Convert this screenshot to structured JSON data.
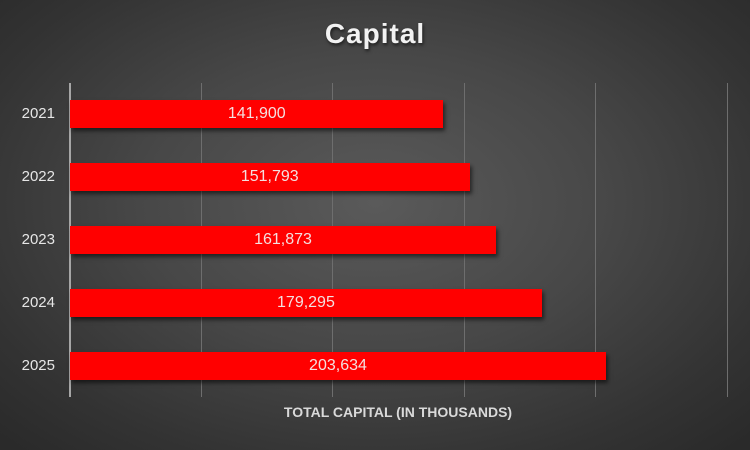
{
  "chart_data": {
    "type": "bar",
    "orientation": "horizontal",
    "title": "Capital",
    "xlabel": "TOTAL CAPITAL (IN THOUSANDS)",
    "ylabel": "",
    "categories": [
      "2021",
      "2022",
      "2023",
      "2024",
      "2025"
    ],
    "values": [
      141900,
      151793,
      161873,
      179295,
      203634
    ],
    "value_labels": [
      "141,900",
      "151,793",
      "161,873",
      "179,295",
      "203,634"
    ],
    "xlim": [
      0,
      250000
    ],
    "major_unit": 50000,
    "grid": true,
    "tick_labels_visible": false,
    "legend": null,
    "bar_color": "#ff0000"
  },
  "colors": {
    "bar": "#ff0000",
    "background_center": "#5a5a5a",
    "background_edge": "#2a2a2a",
    "title_text": "#f2f2f2",
    "gridline": "#6e6e6e"
  }
}
